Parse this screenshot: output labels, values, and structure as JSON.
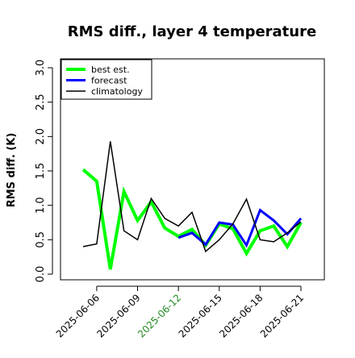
{
  "chart_data": {
    "type": "line",
    "title": "RMS diff., layer 4 temperature",
    "xlabel": "",
    "ylabel": "RMS diff. (K)",
    "x": [
      "2025-06-05",
      "2025-06-06",
      "2025-06-07",
      "2025-06-08",
      "2025-06-09",
      "2025-06-10",
      "2025-06-11",
      "2025-06-12",
      "2025-06-13",
      "2025-06-14",
      "2025-06-15",
      "2025-06-16",
      "2025-06-17",
      "2025-06-18",
      "2025-06-19",
      "2025-06-20",
      "2025-06-21"
    ],
    "xticks": [
      "2025-06-06",
      "2025-06-09",
      "2025-06-12",
      "2025-06-15",
      "2025-06-18",
      "2025-06-21"
    ],
    "xtick_colors": [
      "#000000",
      "#000000",
      "#228B22",
      "#000000",
      "#000000",
      "#000000"
    ],
    "ylim": [
      0.0,
      3.1
    ],
    "yticks": [
      0.0,
      0.5,
      1.0,
      1.5,
      2.0,
      2.5,
      3.0
    ],
    "ytick_labels": [
      "0.0",
      "0.5",
      "1.0",
      "1.5",
      "2.0",
      "2.5",
      "3.0"
    ],
    "legend_position": "top-left",
    "series": [
      {
        "name": "best est.",
        "color": "#00ff00",
        "width": 4,
        "values": [
          1.52,
          1.35,
          0.07,
          1.2,
          0.78,
          1.05,
          0.67,
          0.55,
          0.65,
          0.42,
          0.73,
          0.66,
          0.3,
          0.63,
          0.7,
          0.4,
          0.75
        ]
      },
      {
        "name": "forecast",
        "color": "#0000ff",
        "width": 3,
        "values": [
          null,
          null,
          null,
          null,
          null,
          null,
          null,
          0.53,
          0.6,
          0.43,
          0.75,
          0.72,
          0.42,
          0.93,
          0.78,
          0.58,
          0.81
        ]
      },
      {
        "name": "climatology",
        "color": "#000000",
        "width": 1.5,
        "values": [
          0.4,
          0.44,
          1.93,
          0.63,
          0.5,
          1.1,
          0.81,
          0.7,
          0.9,
          0.33,
          0.5,
          0.73,
          1.09,
          0.5,
          0.47,
          0.6,
          0.76
        ]
      }
    ]
  }
}
